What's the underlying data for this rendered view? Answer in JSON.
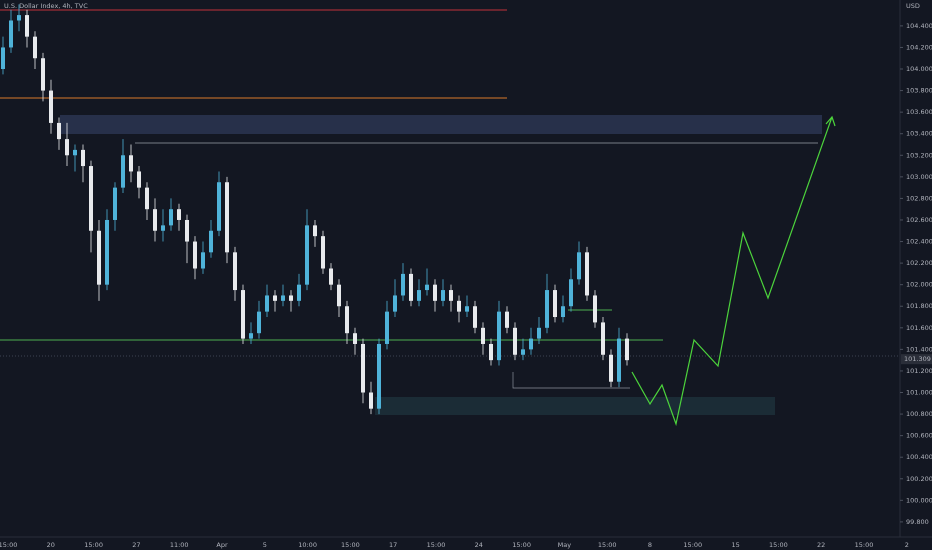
{
  "chart_data": {
    "type": "candlestick",
    "title": "U.S. Dollar Index, 4h, TVC",
    "currency": "USD",
    "up_color": "#4fb3d9",
    "down_color": "#e8eaed",
    "ylim": [
      99.66,
      104.64
    ],
    "yticks": [
      {
        "value": 104.4,
        "label": "104.400"
      },
      {
        "value": 104.2,
        "label": "104.200"
      },
      {
        "value": 104,
        "label": "104.000"
      },
      {
        "value": 103.8,
        "label": "103.800"
      },
      {
        "value": 103.6,
        "label": "103.600"
      },
      {
        "value": 103.4,
        "label": "103.400"
      },
      {
        "value": 103.2,
        "label": "103.200"
      },
      {
        "value": 103,
        "label": "103.000"
      },
      {
        "value": 102.8,
        "label": "102.800"
      },
      {
        "value": 102.6,
        "label": "102.600"
      },
      {
        "value": 102.4,
        "label": "102.400"
      },
      {
        "value": 102.2,
        "label": "102.200"
      },
      {
        "value": 102,
        "label": "102.000"
      },
      {
        "value": 101.8,
        "label": "101.800"
      },
      {
        "value": 101.6,
        "label": "101.600"
      },
      {
        "value": 101.4,
        "label": "101.400"
      },
      {
        "value": 101.2,
        "label": "101.200"
      },
      {
        "value": 101,
        "label": "101.000"
      },
      {
        "value": 100.8,
        "label": "100.800"
      },
      {
        "value": 100.6,
        "label": "100.600"
      },
      {
        "value": 100.4,
        "label": "100.400"
      },
      {
        "value": 100.2,
        "label": "100.200"
      },
      {
        "value": 100,
        "label": "100.000"
      },
      {
        "value": 99.8,
        "label": "99.800"
      }
    ],
    "x_labels": [
      "15:00",
      "20",
      "15:00",
      "27",
      "11:00",
      "Apr",
      "5",
      "10:00",
      "15:00",
      "17",
      "15:00",
      "24",
      "15:00",
      "May",
      "15:00",
      "8",
      "15:00",
      "15",
      "15:00",
      "22",
      "15:00",
      "2"
    ],
    "last_price": 101.309,
    "candles": [
      [
        104.0,
        104.3,
        103.95,
        104.2
      ],
      [
        104.2,
        104.55,
        104.15,
        104.45
      ],
      [
        104.45,
        104.6,
        104.35,
        104.5
      ],
      [
        104.5,
        104.55,
        104.2,
        104.3
      ],
      [
        104.3,
        104.35,
        104.0,
        104.1
      ],
      [
        104.1,
        104.15,
        103.7,
        103.8
      ],
      [
        103.8,
        103.9,
        103.4,
        103.5
      ],
      [
        103.5,
        103.55,
        103.25,
        103.35
      ],
      [
        103.35,
        103.5,
        103.1,
        103.2
      ],
      [
        103.2,
        103.3,
        103.05,
        103.25
      ],
      [
        103.25,
        103.3,
        102.95,
        103.1
      ],
      [
        103.1,
        103.15,
        102.3,
        102.5
      ],
      [
        102.5,
        102.6,
        101.85,
        102.0
      ],
      [
        102.0,
        102.7,
        101.95,
        102.6
      ],
      [
        102.6,
        102.95,
        102.5,
        102.9
      ],
      [
        102.9,
        103.35,
        102.85,
        103.2
      ],
      [
        103.2,
        103.3,
        102.95,
        103.05
      ],
      [
        103.05,
        103.1,
        102.8,
        102.9
      ],
      [
        102.9,
        102.95,
        102.6,
        102.7
      ],
      [
        102.7,
        102.8,
        102.4,
        102.5
      ],
      [
        102.5,
        102.7,
        102.4,
        102.55
      ],
      [
        102.55,
        102.8,
        102.5,
        102.7
      ],
      [
        102.7,
        102.75,
        102.5,
        102.6
      ],
      [
        102.6,
        102.65,
        102.2,
        102.4
      ],
      [
        102.4,
        102.45,
        102.05,
        102.15
      ],
      [
        102.15,
        102.4,
        102.1,
        102.3
      ],
      [
        102.3,
        102.6,
        102.25,
        102.5
      ],
      [
        102.5,
        103.05,
        102.45,
        102.95
      ],
      [
        102.95,
        103.0,
        102.2,
        102.3
      ],
      [
        102.3,
        102.35,
        101.85,
        101.95
      ],
      [
        101.95,
        102.0,
        101.45,
        101.5
      ],
      [
        101.5,
        101.65,
        101.45,
        101.55
      ],
      [
        101.55,
        101.85,
        101.5,
        101.75
      ],
      [
        101.75,
        102.0,
        101.7,
        101.9
      ],
      [
        101.9,
        101.95,
        101.75,
        101.85
      ],
      [
        101.85,
        102.0,
        101.8,
        101.9
      ],
      [
        101.9,
        101.95,
        101.75,
        101.85
      ],
      [
        101.85,
        102.1,
        101.8,
        102.0
      ],
      [
        102.0,
        102.7,
        101.95,
        102.55
      ],
      [
        102.55,
        102.6,
        102.35,
        102.45
      ],
      [
        102.45,
        102.5,
        102.1,
        102.15
      ],
      [
        102.15,
        102.2,
        101.95,
        102.0
      ],
      [
        102.0,
        102.05,
        101.7,
        101.8
      ],
      [
        101.8,
        101.85,
        101.45,
        101.55
      ],
      [
        101.55,
        101.6,
        101.35,
        101.45
      ],
      [
        101.45,
        101.5,
        100.9,
        101.0
      ],
      [
        101.0,
        101.1,
        100.8,
        100.85
      ],
      [
        100.85,
        101.5,
        100.8,
        101.45
      ],
      [
        101.45,
        101.85,
        101.4,
        101.75
      ],
      [
        101.75,
        102.05,
        101.7,
        101.9
      ],
      [
        101.9,
        102.2,
        101.85,
        102.1
      ],
      [
        102.1,
        102.15,
        101.8,
        101.85
      ],
      [
        101.85,
        102.05,
        101.8,
        101.95
      ],
      [
        101.95,
        102.15,
        101.9,
        102.0
      ],
      [
        102.0,
        102.05,
        101.75,
        101.85
      ],
      [
        101.85,
        102.05,
        101.8,
        101.95
      ],
      [
        101.95,
        102.0,
        101.75,
        101.85
      ],
      [
        101.85,
        101.9,
        101.65,
        101.75
      ],
      [
        101.75,
        101.9,
        101.7,
        101.8
      ],
      [
        101.8,
        101.85,
        101.55,
        101.6
      ],
      [
        101.6,
        101.65,
        101.35,
        101.45
      ],
      [
        101.45,
        101.5,
        101.25,
        101.3
      ],
      [
        101.3,
        101.85,
        101.25,
        101.75
      ],
      [
        101.75,
        101.8,
        101.55,
        101.6
      ],
      [
        101.6,
        101.65,
        101.3,
        101.35
      ],
      [
        101.35,
        101.5,
        101.3,
        101.4
      ],
      [
        101.4,
        101.6,
        101.35,
        101.5
      ],
      [
        101.5,
        101.7,
        101.45,
        101.6
      ],
      [
        101.6,
        102.1,
        101.55,
        101.95
      ],
      [
        101.95,
        102.0,
        101.65,
        101.7
      ],
      [
        101.7,
        101.9,
        101.65,
        101.8
      ],
      [
        101.8,
        102.15,
        101.75,
        102.05
      ],
      [
        102.05,
        102.4,
        102.0,
        102.3
      ],
      [
        102.3,
        102.35,
        101.85,
        101.9
      ],
      [
        101.9,
        101.95,
        101.6,
        101.65
      ],
      [
        101.65,
        101.7,
        101.3,
        101.35
      ],
      [
        101.35,
        101.4,
        101.05,
        101.1
      ],
      [
        101.1,
        101.6,
        101.05,
        101.5
      ],
      [
        101.5,
        101.55,
        101.25,
        101.3
      ]
    ]
  }
}
